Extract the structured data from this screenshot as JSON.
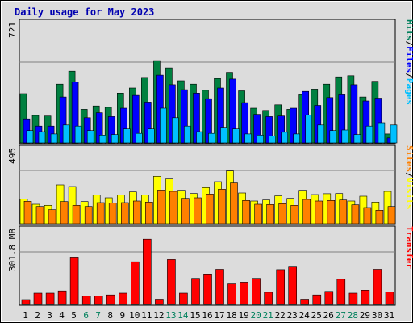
{
  "chart_data": {
    "type": "bar",
    "title": "Daily usage for May 2023",
    "categories": [
      "1",
      "2",
      "3",
      "4",
      "5",
      "6",
      "7",
      "8",
      "9",
      "10",
      "11",
      "12",
      "13",
      "14",
      "15",
      "16",
      "17",
      "18",
      "19",
      "20",
      "21",
      "22",
      "23",
      "24",
      "25",
      "26",
      "27",
      "28",
      "29",
      "30",
      "31"
    ],
    "weekend_days": [
      "6",
      "7",
      "13",
      "14",
      "20",
      "21",
      "27",
      "28"
    ],
    "panels": [
      {
        "id": "hits-files-pages",
        "ylim": [
          0,
          721
        ],
        "y_tick_label": "721",
        "y_tick_value": 721,
        "right_labels": [
          {
            "text": "Hits",
            "color": "#00805c"
          },
          {
            "text": "Files",
            "color": "#0000ff"
          },
          {
            "text": "Pages",
            "color": "#00c0ff"
          }
        ],
        "series": [
          {
            "name": "Hits",
            "color": "#008040",
            "values": [
              440,
              245,
              240,
              525,
              640,
              300,
              330,
              318,
              445,
              490,
              585,
              735,
              670,
              555,
              525,
              470,
              575,
              630,
              465,
              310,
              290,
              340,
              300,
              430,
              480,
              525,
              590,
              600,
              410,
              550,
              80
            ]
          },
          {
            "name": "Files",
            "color": "#0000ff",
            "values": [
              215,
              150,
              150,
              410,
              545,
              225,
              270,
              235,
              310,
              425,
              365,
              605,
              520,
              475,
              445,
              395,
              490,
              570,
              360,
              255,
              235,
              240,
              310,
              460,
              335,
              405,
              430,
              520,
              375,
              400,
              45
            ]
          },
          {
            "name": "Pages",
            "color": "#00c0ff",
            "values": [
              110,
              100,
              80,
              160,
              150,
              110,
              70,
              75,
              125,
              85,
              125,
              310,
              225,
              150,
              100,
              85,
              140,
              125,
              80,
              70,
              60,
              95,
              80,
              250,
              160,
              110,
              115,
              75,
              150,
              180,
              160
            ]
          }
        ]
      },
      {
        "id": "visits-sites",
        "ylim": [
          0,
          495
        ],
        "y_tick_label": "495",
        "y_tick_value": 495,
        "right_labels": [
          {
            "text": "Sites",
            "color": "#ff8000"
          },
          {
            "text": "Visits",
            "color": "#ffff00"
          }
        ],
        "series": [
          {
            "name": "Visits",
            "color": "#ffff00",
            "values": [
              228,
              180,
              170,
              360,
              345,
              205,
              265,
              240,
              265,
              295,
              265,
              440,
              415,
              310,
              280,
              335,
              390,
              490,
              285,
              210,
              220,
              258,
              235,
              310,
              270,
              278,
              280,
              210,
              255,
              200,
              300
            ]
          },
          {
            "name": "Sites",
            "color": "#ff8000",
            "values": [
              208,
              160,
              130,
              205,
              170,
              160,
              195,
              190,
              195,
              210,
              200,
              312,
              300,
              235,
              240,
              275,
              320,
              378,
              215,
              180,
              178,
              185,
              170,
              225,
              210,
              215,
              220,
              175,
              150,
              125,
              160
            ]
          }
        ]
      },
      {
        "id": "kbytes",
        "ylim": [
          0,
          373
        ],
        "y_tick_label": "301.8 MB",
        "y_tick_value": 301.8,
        "right_labels": [
          {
            "text": "Transfer",
            "color": "#ff0000"
          }
        ],
        "series": [
          {
            "name": "Transfer",
            "color": "#ff0000",
            "values": [
              28,
              65,
              65,
              78,
              272,
              48,
              48,
              55,
              65,
              245,
              375,
              30,
              258,
              65,
              150,
              175,
              202,
              118,
              128,
              150,
              70,
              200,
              215,
              30,
              55,
              75,
              145,
              65,
              82,
              202,
              72
            ]
          }
        ]
      }
    ]
  }
}
